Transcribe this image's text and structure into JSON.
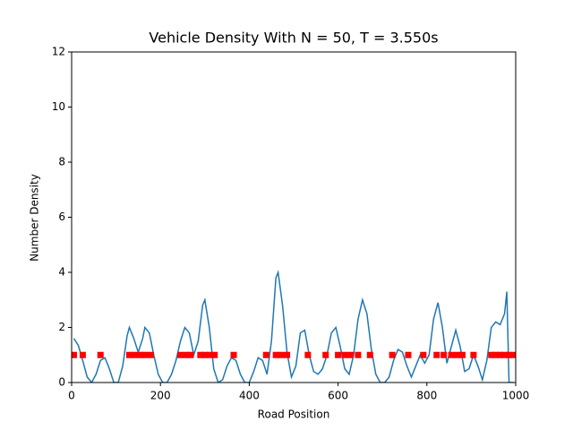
{
  "chart_data": {
    "type": "line",
    "title": "Vehicle Density With N = 50, T = 3.550s",
    "xlabel": "Road Position",
    "ylabel": "Number Density",
    "xlim": [
      0,
      1000
    ],
    "ylim": [
      0,
      12
    ],
    "xticks": [
      0,
      200,
      400,
      600,
      800,
      1000
    ],
    "yticks": [
      0,
      2,
      4,
      6,
      8,
      10,
      12
    ],
    "series": [
      {
        "type": "line",
        "color": "#1f77b4",
        "x": [
          5,
          15,
          25,
          35,
          45,
          55,
          65,
          75,
          85,
          95,
          105,
          115,
          125,
          130,
          140,
          150,
          160,
          165,
          175,
          185,
          195,
          205,
          215,
          225,
          235,
          245,
          255,
          265,
          275,
          285,
          295,
          300,
          310,
          320,
          330,
          340,
          350,
          360,
          370,
          380,
          390,
          400,
          410,
          420,
          430,
          440,
          450,
          460,
          465,
          475,
          485,
          495,
          505,
          515,
          525,
          535,
          545,
          555,
          565,
          575,
          585,
          595,
          605,
          615,
          625,
          635,
          645,
          655,
          665,
          675,
          685,
          695,
          705,
          715,
          725,
          735,
          745,
          755,
          765,
          775,
          785,
          795,
          805,
          815,
          825,
          835,
          845,
          855,
          865,
          875,
          885,
          895,
          905,
          915,
          925,
          935,
          945,
          955,
          965,
          975,
          980,
          985,
          995
        ],
        "values": [
          1.6,
          1.35,
          0.8,
          0.2,
          0,
          0.3,
          0.8,
          0.9,
          0.5,
          0,
          0,
          0.6,
          1.7,
          2.0,
          1.6,
          1.1,
          1.6,
          2.0,
          1.8,
          1.0,
          0.3,
          0,
          0,
          0.3,
          0.8,
          1.5,
          2.0,
          1.8,
          1.0,
          1.5,
          2.8,
          3.0,
          2.0,
          0.5,
          0,
          0.1,
          0.6,
          0.9,
          0.8,
          0.3,
          0,
          0,
          0.4,
          0.9,
          0.8,
          0.3,
          1.5,
          3.8,
          4.0,
          2.8,
          1.1,
          0.2,
          0.6,
          1.8,
          1.9,
          1.0,
          0.4,
          0.3,
          0.5,
          1.0,
          1.8,
          2.0,
          1.3,
          0.5,
          0.3,
          1.0,
          2.3,
          3.0,
          2.5,
          1.2,
          0.3,
          0,
          0,
          0.2,
          0.8,
          1.2,
          1.1,
          0.6,
          0.2,
          0.6,
          1.0,
          0.7,
          1.0,
          2.3,
          2.9,
          2.0,
          0.7,
          1.3,
          1.9,
          1.3,
          0.4,
          0.5,
          1.0,
          0.6,
          0.1,
          0.8,
          2.0,
          2.2,
          2.1,
          2.5,
          3.3,
          0,
          0
        ]
      },
      {
        "type": "scatter",
        "color": "#ff0000",
        "x": [
          5,
          25,
          65,
          130,
          142,
          155,
          165,
          178,
          245,
          258,
          268,
          290,
          300,
          310,
          322,
          365,
          438,
          460,
          472,
          485,
          532,
          572,
          600,
          615,
          628,
          645,
          672,
          722,
          758,
          792,
          822,
          838,
          855,
          868,
          880,
          905,
          945,
          955,
          965,
          975,
          985,
          995
        ],
        "values": [
          1,
          1,
          1,
          1,
          1,
          1,
          1,
          1,
          1,
          1,
          1,
          1,
          1,
          1,
          1,
          1,
          1,
          1,
          1,
          1,
          1,
          1,
          1,
          1,
          1,
          1,
          1,
          1,
          1,
          1,
          1,
          1,
          1,
          1,
          1,
          1,
          1,
          1,
          1,
          1,
          1,
          1
        ]
      }
    ]
  }
}
